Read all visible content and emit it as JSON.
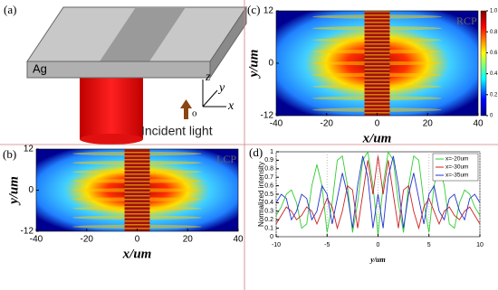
{
  "panel_a": {
    "label": "(a)",
    "material": "Ag",
    "axis_z": "z",
    "axis_y": "y",
    "axis_x": "x",
    "origin": "o",
    "caption": "Incident light"
  },
  "chart_data": [
    {
      "type": "heatmap",
      "panel": "(c)",
      "annotation": "RCP",
      "x_label": "x/um",
      "y_label": "y/um",
      "xlim": [
        -40,
        40
      ],
      "xticks": [
        -40,
        -20,
        0,
        20,
        40
      ],
      "ylim": [
        -12,
        12
      ],
      "yticks": [
        -12,
        0,
        12
      ],
      "colorbar": {
        "lim": [
          0,
          1
        ],
        "ticks": [
          0,
          0.2,
          0.4,
          0.6,
          0.8,
          {
            "value": 1,
            "label": "1.0"
          }
        ]
      }
    },
    {
      "type": "heatmap",
      "panel": "(b)",
      "annotation": "LCP",
      "x_label": "x/um",
      "y_label": "y/um",
      "xlim": [
        -40,
        40
      ],
      "xticks": [
        -40,
        -20,
        0,
        20,
        40
      ],
      "ylim": [
        -12,
        12
      ],
      "yticks": [
        -12,
        0,
        12
      ]
    },
    {
      "type": "line",
      "panel": "(d)",
      "x_label": "y/um",
      "y_label": "Normalized intensity",
      "xlim": [
        -10,
        10
      ],
      "xticks": [
        -10,
        -5,
        0,
        5,
        10
      ],
      "ylim": [
        0,
        1
      ],
      "yticks": [
        0,
        0.1,
        0.2,
        0.3,
        0.4,
        0.5,
        0.6,
        0.7,
        0.8,
        0.9,
        1
      ],
      "grid": true,
      "legend": "top-right",
      "x": [
        -10,
        -9.5,
        -9,
        -8.5,
        -8,
        -7.5,
        -7,
        -6.5,
        -6,
        -5.5,
        -5,
        -4.5,
        -4,
        -3.5,
        -3,
        -2.5,
        -2,
        -1.5,
        -1,
        -0.5,
        0,
        0.5,
        1,
        1.5,
        2,
        2.5,
        3,
        3.5,
        4,
        4.5,
        5,
        5.5,
        6,
        6.5,
        7,
        7.5,
        8,
        8.5,
        9,
        9.5,
        10
      ],
      "series": [
        {
          "name": "x=-20um",
          "color": "#33cc33",
          "values": [
            0.25,
            0.35,
            0.5,
            0.55,
            0.4,
            0.1,
            0.15,
            0.6,
            0.85,
            0.6,
            0.05,
            0.4,
            0.9,
            0.95,
            0.6,
            0.05,
            0.4,
            0.9,
            1.0,
            0.6,
            0.02,
            0.6,
            1.0,
            0.9,
            0.4,
            0.05,
            0.6,
            0.95,
            0.9,
            0.4,
            0.05,
            0.6,
            0.85,
            0.6,
            0.15,
            0.1,
            0.4,
            0.55,
            0.5,
            0.35,
            0.25
          ]
        },
        {
          "name": "x=-30um",
          "color": "#cc2222",
          "values": [
            0.15,
            0.25,
            0.35,
            0.3,
            0.2,
            0.25,
            0.35,
            0.3,
            0.15,
            0.3,
            0.45,
            0.35,
            0.1,
            0.3,
            0.6,
            0.55,
            0.1,
            0.5,
            0.9,
            0.5,
            0.95,
            0.5,
            0.9,
            0.5,
            0.1,
            0.55,
            0.6,
            0.3,
            0.1,
            0.35,
            0.45,
            0.3,
            0.15,
            0.3,
            0.35,
            0.25,
            0.2,
            0.3,
            0.35,
            0.25,
            0.15
          ]
        },
        {
          "name": "x=-35um",
          "color": "#2233cc",
          "values": [
            0.4,
            0.5,
            0.45,
            0.2,
            0.3,
            0.5,
            0.45,
            0.2,
            0.3,
            0.6,
            0.5,
            0.15,
            0.45,
            0.75,
            0.5,
            0.1,
            0.6,
            0.95,
            0.7,
            0.1,
            0.5,
            0.1,
            0.7,
            0.95,
            0.6,
            0.1,
            0.5,
            0.75,
            0.45,
            0.15,
            0.5,
            0.6,
            0.3,
            0.2,
            0.45,
            0.5,
            0.3,
            0.2,
            0.45,
            0.5,
            0.4
          ]
        }
      ]
    }
  ]
}
